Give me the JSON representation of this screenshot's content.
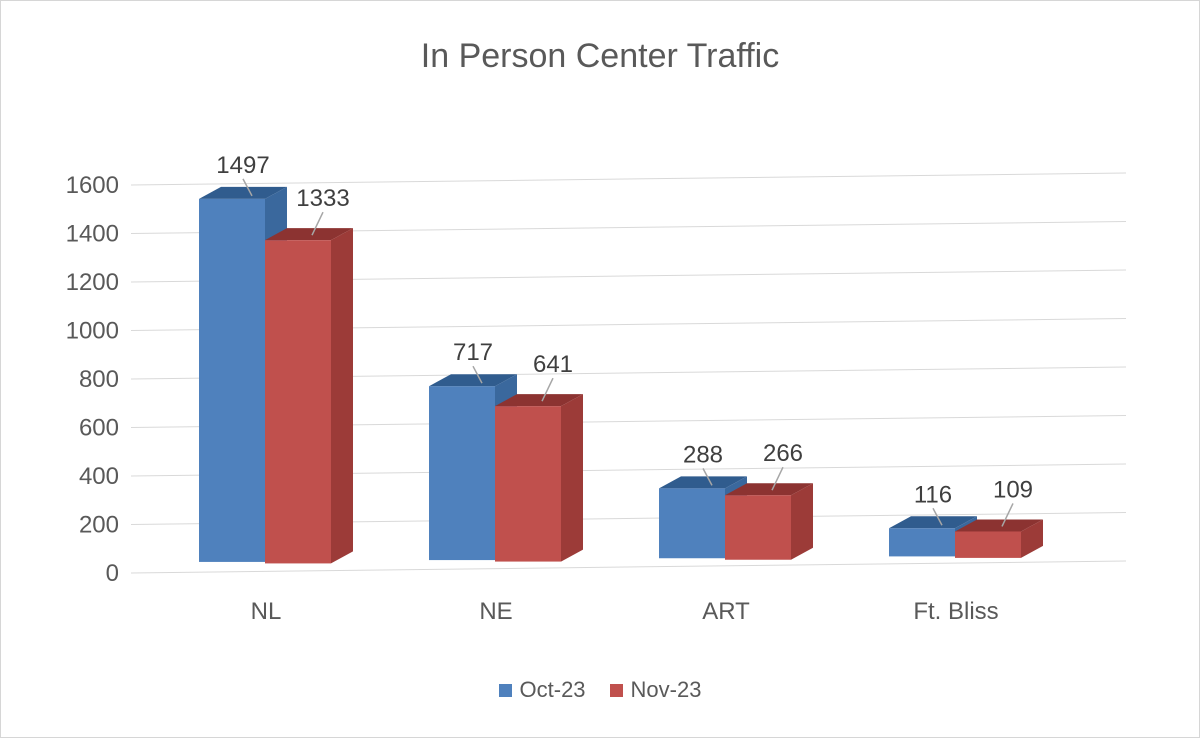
{
  "chart_data": {
    "type": "bar",
    "style": "3d-clustered-column",
    "title": "In Person Center Traffic",
    "xlabel": "",
    "ylabel": "",
    "categories": [
      "NL",
      "NE",
      "ART",
      "Ft. Bliss"
    ],
    "series": [
      {
        "name": "Oct-23",
        "color": "#4F81BD",
        "color_top": "#305C8E",
        "color_side": "#3A689D",
        "values": [
          1497,
          717,
          288,
          116
        ]
      },
      {
        "name": "Nov-23",
        "color": "#C0504D",
        "color_top": "#8C3331",
        "color_side": "#9C3B38",
        "values": [
          1333,
          641,
          266,
          109
        ]
      }
    ],
    "ylim": [
      0,
      1600
    ],
    "yticks": [
      0,
      200,
      400,
      600,
      800,
      1000,
      1200,
      1400,
      1600
    ],
    "grid": true,
    "legend_position": "bottom",
    "grid_color": "#D9D9D9",
    "axis_text_color": "#595959",
    "data_label_color": "#3F3F3F",
    "leader_line_color": "#A6A6A6"
  }
}
